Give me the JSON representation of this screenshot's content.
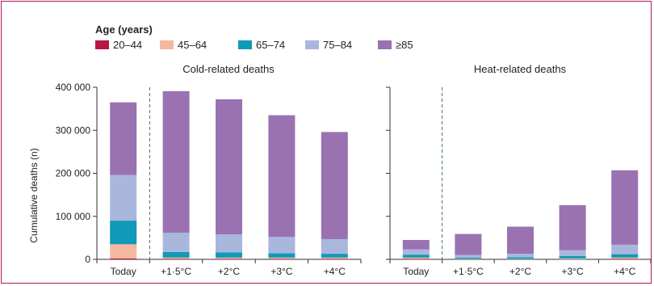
{
  "legend": {
    "title": "Age (years)",
    "items": [
      {
        "label": "20–44",
        "color": "#b8163f"
      },
      {
        "label": "45–64",
        "color": "#f6b8a0"
      },
      {
        "label": "65–74",
        "color": "#1199b9"
      },
      {
        "label": "75–84",
        "color": "#a9b7dd"
      },
      {
        "label": "≥85",
        "color": "#9a72b2"
      }
    ]
  },
  "chart_data": {
    "type": "bar",
    "stacked": true,
    "ylabel": "Cumulative deaths (n)",
    "ylim": [
      0,
      400000
    ],
    "yticks": [
      0,
      100000,
      200000,
      300000,
      400000
    ],
    "ytick_labels": [
      "0",
      "100 000",
      "200 000",
      "300 000",
      "400 000"
    ],
    "categories": [
      "Today",
      "+1·5°C",
      "+2°C",
      "+3°C",
      "+4°C"
    ],
    "panels": [
      {
        "title": "Cold-related deaths",
        "series": [
          {
            "name": "20–44",
            "values": [
              2000,
              1000,
              1000,
              1000,
              1000
            ]
          },
          {
            "name": "45–64",
            "values": [
              33000,
              3000,
              3000,
              3000,
              3000
            ]
          },
          {
            "name": "65–74",
            "values": [
              55000,
              13000,
              12000,
              10000,
              9000
            ]
          },
          {
            "name": "75–84",
            "values": [
              106000,
              45000,
              42000,
              38000,
              34000
            ]
          },
          {
            "name": "≥85",
            "values": [
              169000,
              329000,
              314000,
              283000,
              249000
            ]
          }
        ]
      },
      {
        "title": "Heat-related deaths",
        "series": [
          {
            "name": "20–44",
            "values": [
              1000,
              0,
              0,
              0,
              1000
            ]
          },
          {
            "name": "45–64",
            "values": [
              3000,
              1000,
              1000,
              2000,
              3000
            ]
          },
          {
            "name": "65–74",
            "values": [
              7000,
              3000,
              4000,
              6000,
              8000
            ]
          },
          {
            "name": "75–84",
            "values": [
              12000,
              6000,
              8000,
              13000,
              22000
            ]
          },
          {
            "name": "≥85",
            "values": [
              22000,
              49000,
              63000,
              105000,
              173000
            ]
          }
        ]
      }
    ]
  }
}
